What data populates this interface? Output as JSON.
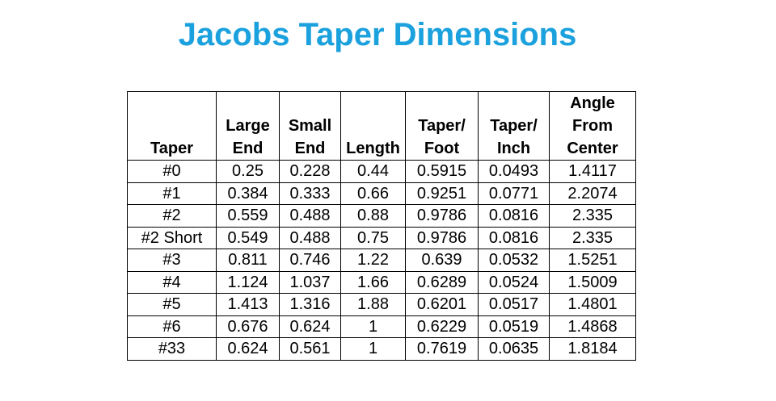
{
  "title": "Jacobs Taper Dimensions",
  "table": {
    "headers": [
      [
        "Taper"
      ],
      [
        "Large",
        "End"
      ],
      [
        "Small",
        "End"
      ],
      [
        "Length"
      ],
      [
        "Taper/",
        "Foot"
      ],
      [
        "Taper/",
        "Inch"
      ],
      [
        "Angle",
        "From",
        "Center"
      ]
    ],
    "rows": [
      [
        "#0",
        "0.25",
        "0.228",
        "0.44",
        "0.5915",
        "0.0493",
        "1.4117"
      ],
      [
        "#1",
        "0.384",
        "0.333",
        "0.66",
        "0.9251",
        "0.0771",
        "2.2074"
      ],
      [
        "#2",
        "0.559",
        "0.488",
        "0.88",
        "0.9786",
        "0.0816",
        "2.335"
      ],
      [
        "#2 Short",
        "0.549",
        "0.488",
        "0.75",
        "0.9786",
        "0.0816",
        "2.335"
      ],
      [
        "#3",
        "0.811",
        "0.746",
        "1.22",
        "0.639",
        "0.0532",
        "1.5251"
      ],
      [
        "#4",
        "1.124",
        "1.037",
        "1.66",
        "0.6289",
        "0.0524",
        "1.5009"
      ],
      [
        "#5",
        "1.413",
        "1.316",
        "1.88",
        "0.6201",
        "0.0517",
        "1.4801"
      ],
      [
        "#6",
        "0.676",
        "0.624",
        "1",
        "0.6229",
        "0.0519",
        "1.4868"
      ],
      [
        "#33",
        "0.624",
        "0.561",
        "1",
        "0.7619",
        "0.0635",
        "1.8184"
      ]
    ]
  }
}
